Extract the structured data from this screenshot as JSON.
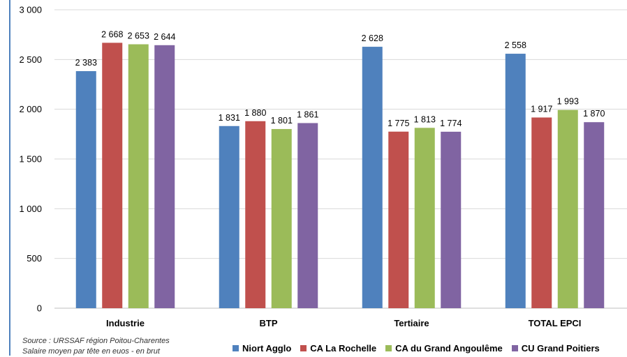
{
  "chart_data": {
    "type": "bar",
    "categories": [
      "Industrie",
      "BTP",
      "Tertiaire",
      "TOTAL EPCI"
    ],
    "series": [
      {
        "name": "Niort Agglo",
        "color": "#4f81bd",
        "values": [
          2383,
          1831,
          2628,
          2558
        ],
        "labels": [
          "2 383",
          "1 831",
          "2 628",
          "2 558"
        ]
      },
      {
        "name": "CA La Rochelle",
        "color": "#c0504d",
        "values": [
          2668,
          1880,
          1775,
          1917
        ],
        "labels": [
          "2 668",
          "1 880",
          "1 775",
          "1 917"
        ]
      },
      {
        "name": "CA du Grand Angoulême",
        "color": "#9bbb59",
        "values": [
          2653,
          1801,
          1813,
          1993
        ],
        "labels": [
          "2 653",
          "1 801",
          "1 813",
          "1 993"
        ]
      },
      {
        "name": "CU Grand Poitiers",
        "color": "#8064a2",
        "values": [
          2644,
          1861,
          1774,
          1870
        ],
        "labels": [
          "2 644",
          "1 861",
          "1 774",
          "1 870"
        ]
      }
    ],
    "ylim": [
      0,
      3000
    ],
    "yticks": [
      0,
      500,
      1000,
      1500,
      2000,
      2500,
      3000
    ],
    "ytick_labels": [
      "0",
      "500",
      "1 000",
      "1 500",
      "2 000",
      "2 500",
      "3 000"
    ],
    "grid": true,
    "legend_position": "bottom"
  },
  "source_lines": [
    "Source : URSSAF région Poitou-Charentes",
    "Salaire moyen par tête  en euos - en brut"
  ],
  "colors": {
    "axis_accent": "#4f81bd",
    "gridline": "#d9d9d9"
  }
}
